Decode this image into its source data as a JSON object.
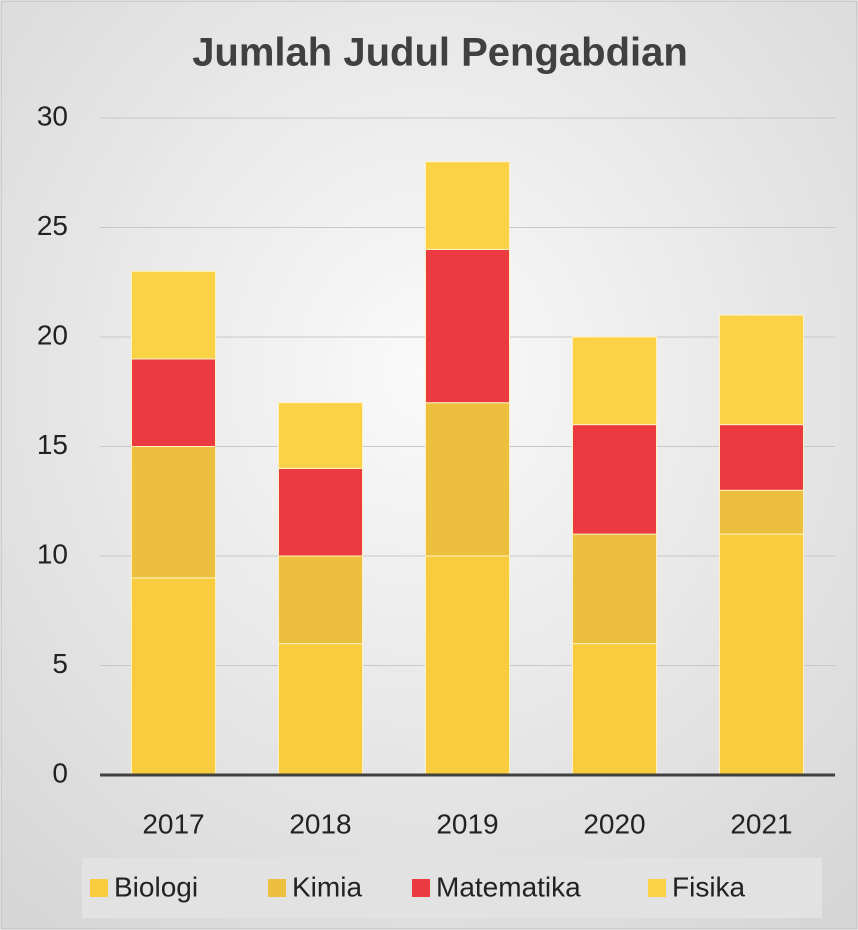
{
  "chart_data": {
    "type": "stacked_bar",
    "title": "Jumlah Judul Pengabdian",
    "categories": [
      "2017",
      "2018",
      "2019",
      "2020",
      "2021"
    ],
    "series": [
      {
        "name": "Biologi",
        "color": "#f9cb3e",
        "values": [
          9,
          6,
          10,
          6,
          11
        ]
      },
      {
        "name": "Kimia",
        "color": "#ecc03e",
        "values": [
          6,
          4,
          7,
          5,
          2
        ]
      },
      {
        "name": "Matematika",
        "color": "#eb3b40",
        "values": [
          4,
          4,
          7,
          5,
          3
        ]
      },
      {
        "name": "Fisika",
        "color": "#fbd146",
        "values": [
          4,
          3,
          4,
          4,
          5
        ]
      }
    ],
    "ylim": [
      0,
      30
    ],
    "yticks": [
      0,
      5,
      10,
      15,
      20,
      25,
      30
    ],
    "grid": true,
    "legend": "bottom"
  }
}
